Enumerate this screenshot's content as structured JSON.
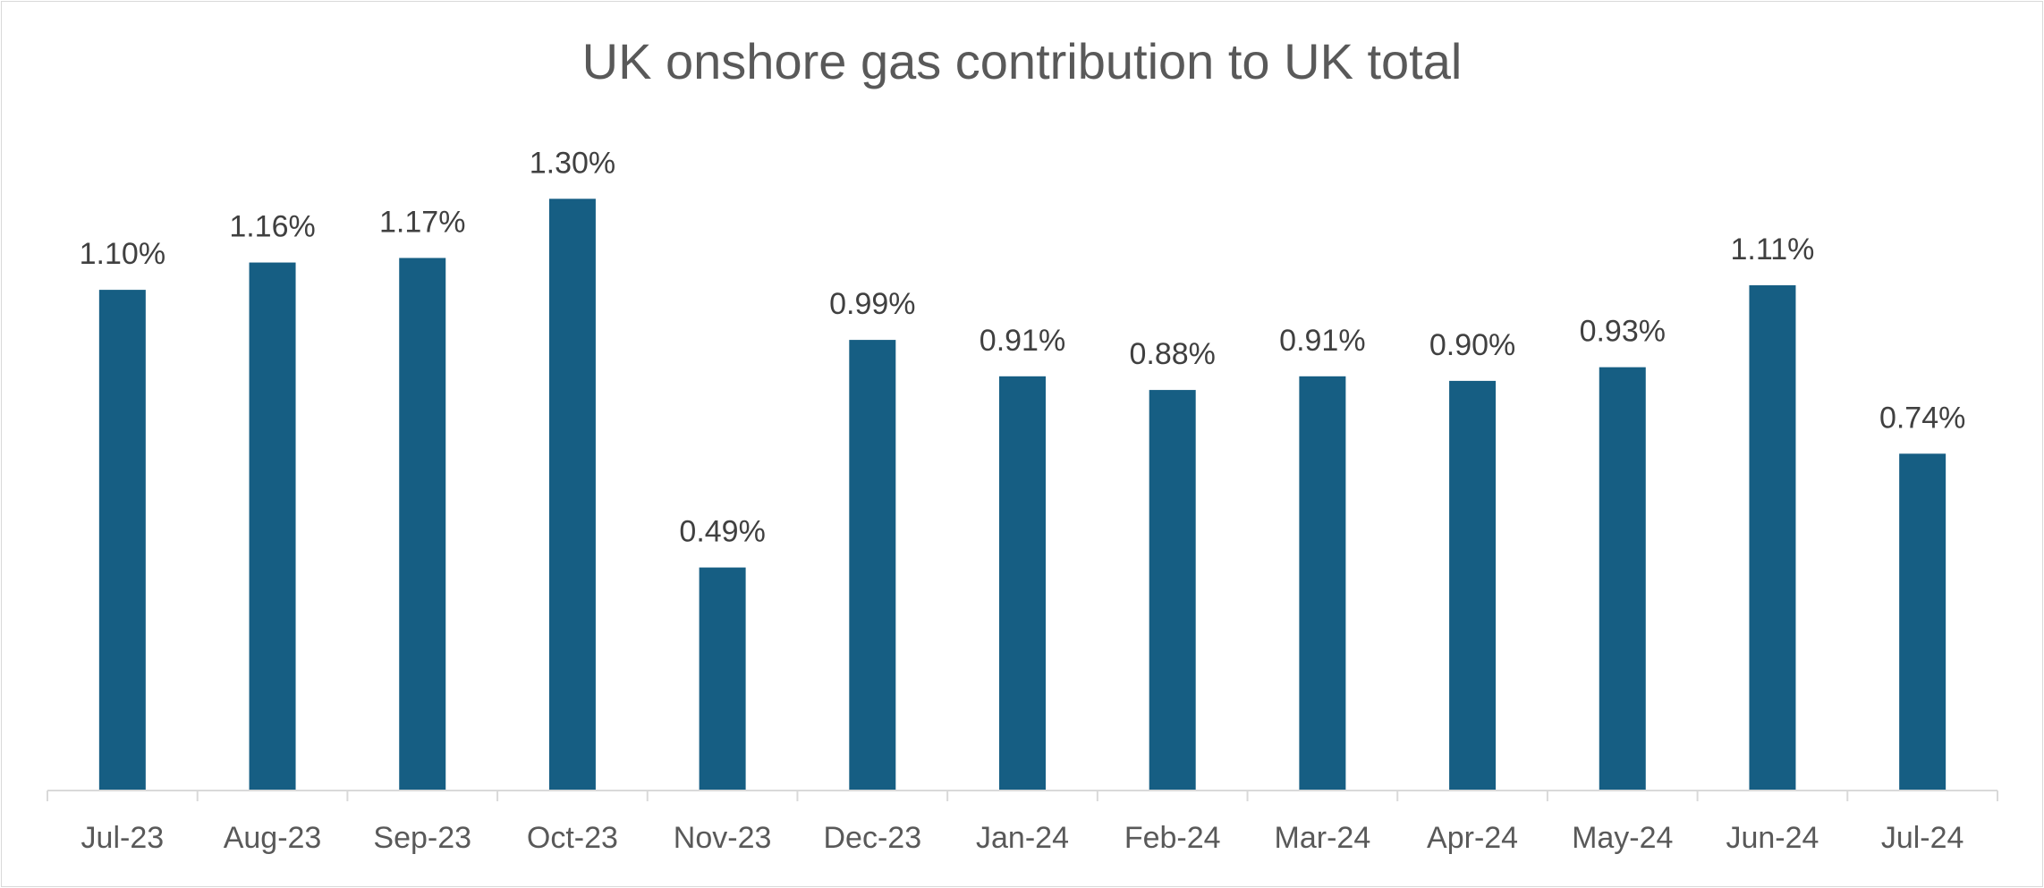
{
  "chart_data": {
    "type": "bar",
    "title": "UK onshore gas contribution to UK total",
    "xlabel": "",
    "ylabel": "",
    "categories": [
      "Jul-23",
      "Aug-23",
      "Sep-23",
      "Oct-23",
      "Nov-23",
      "Dec-23",
      "Jan-24",
      "Feb-24",
      "Mar-24",
      "Apr-24",
      "May-24",
      "Jun-24",
      "Jul-24"
    ],
    "values": [
      1.1,
      1.16,
      1.17,
      1.3,
      0.49,
      0.99,
      0.91,
      0.88,
      0.91,
      0.9,
      0.93,
      1.11,
      0.74
    ],
    "data_labels": [
      "1.10%",
      "1.16%",
      "1.17%",
      "1.30%",
      "0.49%",
      "0.99%",
      "0.91%",
      "0.88%",
      "0.91%",
      "0.90%",
      "0.93%",
      "1.11%",
      "0.74%"
    ],
    "ylim": [
      0,
      1.4
    ],
    "grid": false,
    "legend": "none",
    "bar_color": "#165e83",
    "axis_color": "#d9d9d9"
  }
}
